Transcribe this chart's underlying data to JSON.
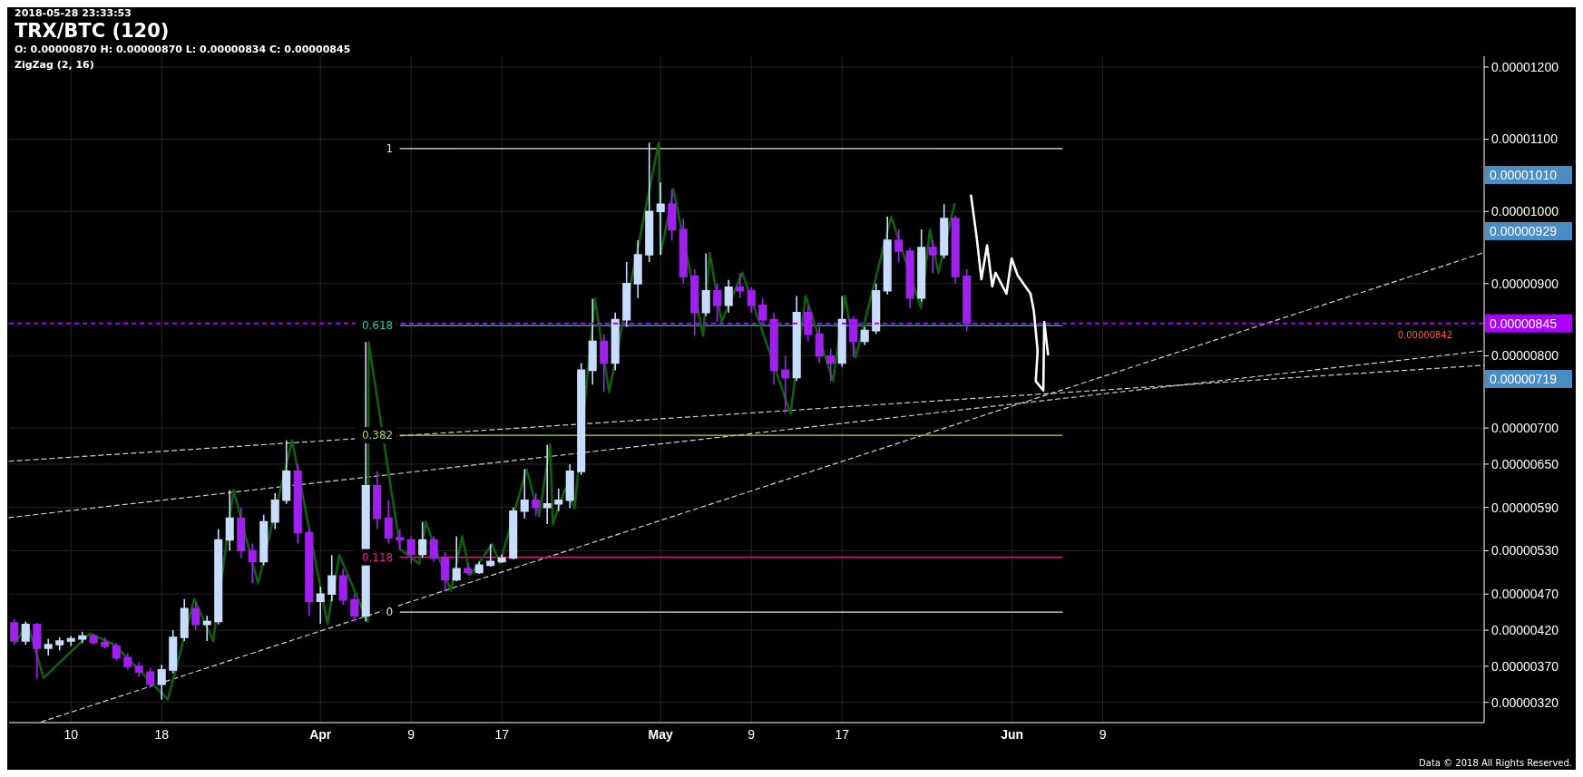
{
  "chart_data": {
    "type": "candlestick",
    "title": "TRX/BTC (120)",
    "subtitle": "O: 0.00000870 H: 0.00000870 L: 0.00000834 C: 0.00000845",
    "annotations": [
      "2018-05-28 23:33:53",
      "ZigZag (2, 16)",
      "Data © 2018 All Rights Reserved.",
      "0.00001010",
      "0.00000929",
      "0.00000719",
      {
        "text": "0.00000842",
        "x": "2018-07-05T00:00",
        "y": 8.42e-06
      }
    ],
    "xlim": [
      "2018-03-04T13:00",
      "2018-07-12T15:00"
    ],
    "xticks": [
      {
        "value": "2018-03-10",
        "label": "10"
      },
      {
        "value": "2018-03-18",
        "label": "18"
      },
      {
        "value": "2018-04-01",
        "label": "Apr"
      },
      {
        "value": "2018-04-09",
        "label": "9"
      },
      {
        "value": "2018-04-17",
        "label": "17"
      },
      {
        "value": "2018-05-01",
        "label": "May"
      },
      {
        "value": "2018-05-09",
        "label": "9"
      },
      {
        "value": "2018-05-17",
        "label": "17"
      },
      {
        "value": "2018-06-01",
        "label": "Jun"
      },
      {
        "value": "2018-06-09",
        "label": "9"
      }
    ],
    "ylim": [
      2.92e-06,
      1.215e-05
    ],
    "yticks": [
      {
        "value": 1.2e-05,
        "label": "0.00001200"
      },
      {
        "value": 1.1e-05,
        "label": "0.00001100"
      },
      {
        "value": 1e-05,
        "label": "0.00001000"
      },
      {
        "value": 9e-06,
        "label": "0.00000900"
      },
      {
        "value": 8e-06,
        "label": "0.00000800"
      },
      {
        "value": 7e-06,
        "label": "0.00000700"
      },
      {
        "value": 6.5e-06,
        "label": "0.00000650"
      },
      {
        "value": 5.9e-06,
        "label": "0.00000590"
      },
      {
        "value": 5.3e-06,
        "label": "0.00000530"
      },
      {
        "value": 4.7e-06,
        "label": "0.00000470"
      },
      {
        "value": 4.2e-06,
        "label": "0.00000420"
      },
      {
        "value": 3.7e-06,
        "label": "0.00000370"
      },
      {
        "value": 3.2e-06,
        "label": "0.00000320"
      }
    ],
    "grid": true,
    "ref_lines": [
      {
        "axis": "y",
        "value": 8.45e-06,
        "label": "0.00000845",
        "color": "#aa00ff",
        "line_style": "dashed"
      }
    ],
    "series": [
      {
        "type": "line",
        "line_style": "dashed",
        "color": "#d0d0d0",
        "x": [
          "2018-03-04T13:00",
          "2018-07-12T15:00"
        ],
        "values": [
          6.54e-06,
          7.87e-06
        ]
      },
      {
        "type": "line",
        "line_style": "dashed",
        "color": "#d0d0d0",
        "x": [
          "2018-03-04T13:00",
          "2018-07-12T15:00"
        ],
        "values": [
          5.76e-06,
          8.07e-06
        ]
      },
      {
        "type": "line",
        "line_style": "dashed",
        "color": "#d0d0d0",
        "x": [
          "2018-03-07T09:00",
          "2018-07-12T15:00"
        ],
        "values": [
          2.93e-06,
          9.43e-06
        ]
      },
      {
        "type": "line",
        "name": "1",
        "color": "#e6e6e6",
        "x": [
          "2018-04-08T01:00",
          "2018-06-05T10:00"
        ],
        "values": [
          1.087e-05,
          1.087e-05
        ]
      },
      {
        "type": "line",
        "name": "0.618",
        "color": "#26c6a0",
        "x": [
          "2018-04-08T01:00",
          "2018-06-05T10:00"
        ],
        "values": [
          8.42e-06,
          8.42e-06
        ]
      },
      {
        "type": "line",
        "name": "0.382",
        "color": "#b8d43c",
        "x": [
          "2018-04-08T01:00",
          "2018-06-05T10:00"
        ],
        "values": [
          6.9e-06,
          6.9e-06
        ]
      },
      {
        "type": "line",
        "name": "0.118",
        "color": "#e0208c",
        "x": [
          "2018-04-08T01:00",
          "2018-06-05T10:00"
        ],
        "values": [
          5.21e-06,
          5.21e-06
        ]
      },
      {
        "type": "line",
        "name": "0",
        "color": "#e6e6e6",
        "x": [
          "2018-04-08T01:00",
          "2018-06-05T10:00"
        ],
        "values": [
          4.45e-06,
          4.45e-06
        ]
      },
      {
        "type": "line",
        "color": "#0f5f0f",
        "x": [
          "2018-03-05T03:00",
          "2018-03-06T04:00",
          "2018-03-07T14:00",
          "2018-03-11T16:00",
          "2018-03-13T20:00",
          "2018-03-18T13:00",
          "2018-03-20T21:00",
          "2018-03-22T13:00",
          "2018-03-24T08:00",
          "2018-03-26T12:00",
          "2018-03-29T12:00",
          "2018-04-01T15:00",
          "2018-04-02T16:00",
          "2018-04-05T04:00",
          "2018-04-05T06:00",
          "2018-04-08T01:00",
          "2018-04-09T17:00",
          "2018-04-10T07:00",
          "2018-04-12T12:00",
          "2018-04-13T12:00",
          "2018-04-14T05:00",
          "2018-04-16T03:00",
          "2018-04-16T20:00",
          "2018-04-19T04:00",
          "2018-04-20T07:00",
          "2018-04-21T06:00",
          "2018-04-21T12:00",
          "2018-04-22T14:00",
          "2018-04-23T10:00",
          "2018-04-25T05:00",
          "2018-04-26T11:00",
          "2018-04-30T20:00",
          "2018-05-01T00:00",
          "2018-05-02T03:00",
          "2018-05-04T18:00",
          "2018-05-05T08:00",
          "2018-05-06T09:00",
          "2018-05-08T05:00",
          "2018-05-12T11:00",
          "2018-05-13T19:00",
          "2018-05-16T05:00",
          "2018-05-17T06:00",
          "2018-05-18T05:00",
          "2018-05-21T08:00",
          "2018-05-23T23:00",
          "2018-05-24T18:00",
          "2018-05-25T12:00",
          "2018-05-26T22:00"
        ],
        "values": [
          4.03e-06,
          4.29e-06,
          3.54e-06,
          4.15e-06,
          4e-06,
          3.24e-06,
          4.63e-06,
          4.05e-06,
          6.14e-06,
          4.85e-06,
          6.83e-06,
          4.29e-06,
          5.24e-06,
          4.32e-06,
          8.19e-06,
          5.32e-06,
          5.12e-06,
          5.7e-06,
          4.75e-06,
          5.5e-06,
          4.96e-06,
          5.39e-06,
          5.13e-06,
          6.43e-06,
          5.78e-06,
          6.77e-06,
          5.67e-06,
          6.16e-06,
          5.89e-06,
          8.79e-06,
          7.5e-06,
          1.095e-05,
          9.4e-06,
          1.031e-05,
          8.28e-06,
          9.42e-06,
          8.47e-06,
          9.15e-06,
          7.2e-06,
          8.83e-06,
          7.65e-06,
          8.83e-06,
          7.98e-06,
          9.93e-06,
          8.66e-06,
          9.75e-06,
          9.15e-06,
          1.01e-05
        ]
      },
      {
        "type": "line",
        "color": "#ffffff",
        "x": [
          "2018-05-28T09:00",
          "2018-05-28T21:00",
          "2018-05-29T07:00",
          "2018-05-29T19:00",
          "2018-05-30T06:00",
          "2018-05-30T13:00",
          "2018-05-31T12:00",
          "2018-05-31T23:00",
          "2018-06-01T12:00",
          "2018-06-02T15:00",
          "2018-06-02T22:00",
          "2018-06-03T06:00",
          "2018-06-03T02:00",
          "2018-06-03T18:00",
          "2018-06-03T20:00",
          "2018-06-04T04:00"
        ],
        "values": [
          1.022e-05,
          9.64e-06,
          9.06e-06,
          9.53e-06,
          8.96e-06,
          9.15e-06,
          8.86e-06,
          9.35e-06,
          9.11e-06,
          8.86e-06,
          8.62e-06,
          8.07e-06,
          7.65e-06,
          7.52e-06,
          8.47e-06,
          8.02e-06
        ]
      },
      {
        "type": "candlestick",
        "color": "#c8dcff",
        "x": [
          "2018-03-06",
          "2018-03-08",
          "2018-03-09",
          "2018-03-10",
          "2018-03-11",
          "2018-03-18",
          "2018-03-19",
          "2018-03-20",
          "2018-03-22",
          "2018-03-23",
          "2018-03-24",
          "2018-03-27",
          "2018-03-28",
          "2018-03-29",
          "2018-04-01",
          "2018-04-02",
          "2018-04-05",
          "2018-04-10",
          "2018-04-13",
          "2018-04-15",
          "2018-04-16",
          "2018-04-17",
          "2018-04-18",
          "2018-04-19",
          "2018-04-21",
          "2018-04-22",
          "2018-04-23",
          "2018-04-24",
          "2018-04-25",
          "2018-04-27",
          "2018-04-28",
          "2018-04-29",
          "2018-04-30",
          "2018-05-01",
          "2018-05-05",
          "2018-05-07",
          "2018-05-13",
          "2018-05-17",
          "2018-05-19",
          "2018-05-20",
          "2018-05-21",
          "2018-05-24",
          "2018-05-26"
        ],
        "ohlc": [
          [
            4.05e-06,
            4.32e-06,
            4e-06,
            4.28e-06
          ],
          [
            3.95e-06,
            4.08e-06,
            3.85e-06,
            4e-06
          ],
          [
            4e-06,
            4.1e-06,
            3.92e-06,
            4.05e-06
          ],
          [
            4.05e-06,
            4.12e-06,
            3.98e-06,
            4.08e-06
          ],
          [
            4.08e-06,
            4.18e-06,
            4.02e-06,
            4.12e-06
          ],
          [
            3.45e-06,
            3.72e-06,
            3.24e-06,
            3.65e-06
          ],
          [
            3.65e-06,
            4.2e-06,
            3.6e-06,
            4.1e-06
          ],
          [
            4.1e-06,
            4.63e-06,
            4.05e-06,
            4.5e-06
          ],
          [
            4.28e-06,
            4.4e-06,
            4.05e-06,
            4.32e-06
          ],
          [
            4.32e-06,
            5.6e-06,
            4.28e-06,
            5.45e-06
          ],
          [
            5.45e-06,
            6.14e-06,
            5.3e-06,
            5.75e-06
          ],
          [
            5.15e-06,
            5.8e-06,
            5.1e-06,
            5.7e-06
          ],
          [
            5.7e-06,
            6.1e-06,
            5.6e-06,
            6e-06
          ],
          [
            6e-06,
            6.83e-06,
            5.95e-06,
            6.4e-06
          ],
          [
            4.6e-06,
            4.8e-06,
            4.29e-06,
            4.7e-06
          ],
          [
            4.7e-06,
            5.24e-06,
            4.6e-06,
            4.95e-06
          ],
          [
            4.4e-06,
            8.19e-06,
            4.32e-06,
            6.2e-06
          ],
          [
            5.25e-06,
            5.7e-06,
            5.2e-06,
            5.45e-06
          ],
          [
            4.9e-06,
            5.5e-06,
            4.88e-06,
            5.05e-06
          ],
          [
            5e-06,
            5.15e-06,
            4.98e-06,
            5.1e-06
          ],
          [
            5.1e-06,
            5.39e-06,
            5.08e-06,
            5.15e-06
          ],
          [
            5.15e-06,
            5.25e-06,
            5.13e-06,
            5.2e-06
          ],
          [
            5.2e-06,
            5.9e-06,
            5.18e-06,
            5.85e-06
          ],
          [
            5.85e-06,
            6.43e-06,
            5.75e-06,
            6e-06
          ],
          [
            5.9e-06,
            6.77e-06,
            5.67e-06,
            5.95e-06
          ],
          [
            5.95e-06,
            6.16e-06,
            5.85e-06,
            6e-06
          ],
          [
            6e-06,
            6.5e-06,
            5.89e-06,
            6.4e-06
          ],
          [
            6.4e-06,
            7.9e-06,
            6.35e-06,
            7.8e-06
          ],
          [
            7.8e-06,
            8.79e-06,
            7.6e-06,
            8.2e-06
          ],
          [
            7.9e-06,
            8.6e-06,
            7.8e-06,
            8.5e-06
          ],
          [
            8.5e-06,
            9.3e-06,
            8.4e-06,
            9e-06
          ],
          [
            9e-06,
            9.6e-06,
            8.8e-06,
            9.4e-06
          ],
          [
            9.4e-06,
            1.095e-05,
            9.3e-06,
            1e-05
          ],
          [
            1e-05,
            1.04e-05,
            9.4e-06,
            1.01e-05
          ],
          [
            8.6e-06,
            9.42e-06,
            8.55e-06,
            8.9e-06
          ],
          [
            8.7e-06,
            9.05e-06,
            8.6e-06,
            8.95e-06
          ],
          [
            7.7e-06,
            8.83e-06,
            7.65e-06,
            8.6e-06
          ],
          [
            7.9e-06,
            8.83e-06,
            7.85e-06,
            8.5e-06
          ],
          [
            8.2e-06,
            8.4e-06,
            8.15e-06,
            8.35e-06
          ],
          [
            8.35e-06,
            9e-06,
            8.3e-06,
            8.9e-06
          ],
          [
            8.9e-06,
            9.93e-06,
            8.85e-06,
            9.6e-06
          ],
          [
            8.8e-06,
            9.75e-06,
            8.75e-06,
            9.5e-06
          ],
          [
            9.4e-06,
            1.01e-05,
            9.35e-06,
            9.9e-06
          ]
        ]
      },
      {
        "type": "candlestick",
        "color": "#a020f0",
        "x": [
          "2018-03-05",
          "2018-03-07",
          "2018-03-12",
          "2018-03-13",
          "2018-03-14",
          "2018-03-15",
          "2018-03-16",
          "2018-03-17",
          "2018-03-21",
          "2018-03-25",
          "2018-03-26",
          "2018-03-30",
          "2018-03-31",
          "2018-04-03",
          "2018-04-04",
          "2018-04-06",
          "2018-04-07",
          "2018-04-08",
          "2018-04-09",
          "2018-04-11",
          "2018-04-12",
          "2018-04-14",
          "2018-04-20",
          "2018-04-26",
          "2018-05-02",
          "2018-05-03",
          "2018-05-04",
          "2018-05-06",
          "2018-05-08",
          "2018-05-09",
          "2018-05-10",
          "2018-05-11",
          "2018-05-12",
          "2018-05-14",
          "2018-05-15",
          "2018-05-16",
          "2018-05-18",
          "2018-05-22",
          "2018-05-23",
          "2018-05-25",
          "2018-05-27",
          "2018-05-28"
        ],
        "ohlc": [
          [
            4.3e-06,
            4.35e-06,
            4e-06,
            4.05e-06
          ],
          [
            4.28e-06,
            4.3e-06,
            3.52e-06,
            3.95e-06
          ],
          [
            4.12e-06,
            4.15e-06,
            4e-06,
            4.03e-06
          ],
          [
            4.03e-06,
            4.1e-06,
            3.95e-06,
            3.98e-06
          ],
          [
            3.98e-06,
            4.02e-06,
            3.78e-06,
            3.82e-06
          ],
          [
            3.82e-06,
            3.88e-06,
            3.65e-06,
            3.7e-06
          ],
          [
            3.7e-06,
            3.76e-06,
            3.55e-06,
            3.62e-06
          ],
          [
            3.62e-06,
            3.68e-06,
            3.4e-06,
            3.45e-06
          ],
          [
            4.5e-06,
            4.58e-06,
            4.2e-06,
            4.28e-06
          ],
          [
            5.75e-06,
            5.9e-06,
            5.2e-06,
            5.3e-06
          ],
          [
            5.3e-06,
            5.4e-06,
            4.85e-06,
            5.15e-06
          ],
          [
            6.4e-06,
            6.5e-06,
            5.4e-06,
            5.55e-06
          ],
          [
            5.55e-06,
            5.6e-06,
            4.4e-06,
            4.6e-06
          ],
          [
            4.95e-06,
            5.05e-06,
            4.55e-06,
            4.62e-06
          ],
          [
            4.62e-06,
            4.7e-06,
            4.32e-06,
            4.4e-06
          ],
          [
            6.2e-06,
            6.4e-06,
            5.6e-06,
            5.75e-06
          ],
          [
            5.75e-06,
            6e-06,
            5.4e-06,
            5.48e-06
          ],
          [
            5.48e-06,
            5.6e-06,
            5.32e-06,
            5.45e-06
          ],
          [
            5.45e-06,
            5.5e-06,
            5.12e-06,
            5.25e-06
          ],
          [
            5.45e-06,
            5.5e-06,
            5.15e-06,
            5.2e-06
          ],
          [
            5.2e-06,
            5.28e-06,
            4.75e-06,
            4.9e-06
          ],
          [
            5.05e-06,
            5.12e-06,
            4.96e-06,
            5e-06
          ],
          [
            6e-06,
            6.1e-06,
            5.78e-06,
            5.9e-06
          ],
          [
            8.2e-06,
            8.3e-06,
            7.5e-06,
            7.9e-06
          ],
          [
            1.01e-05,
            1.031e-05,
            9.6e-06,
            9.75e-06
          ],
          [
            9.75e-06,
            9.9e-06,
            9e-06,
            9.1e-06
          ],
          [
            9.1e-06,
            9.2e-06,
            8.28e-06,
            8.6e-06
          ],
          [
            8.9e-06,
            9e-06,
            8.47e-06,
            8.7e-06
          ],
          [
            8.95e-06,
            9.15e-06,
            8.8e-06,
            8.9e-06
          ],
          [
            8.9e-06,
            8.95e-06,
            8.6e-06,
            8.7e-06
          ],
          [
            8.7e-06,
            8.8e-06,
            8.45e-06,
            8.5e-06
          ],
          [
            8.5e-06,
            8.6e-06,
            7.6e-06,
            7.8e-06
          ],
          [
            7.8e-06,
            8e-06,
            7.2e-06,
            7.7e-06
          ],
          [
            8.6e-06,
            8.7e-06,
            8.2e-06,
            8.3e-06
          ],
          [
            8.3e-06,
            8.4e-06,
            7.9e-06,
            8e-06
          ],
          [
            8e-06,
            8.1e-06,
            7.65e-06,
            7.9e-06
          ],
          [
            8.5e-06,
            8.55e-06,
            7.98e-06,
            8.2e-06
          ],
          [
            9.6e-06,
            9.75e-06,
            9.3e-06,
            9.45e-06
          ],
          [
            9.45e-06,
            9.5e-06,
            8.66e-06,
            8.8e-06
          ],
          [
            9.5e-06,
            9.6e-06,
            9.15e-06,
            9.4e-06
          ],
          [
            9.9e-06,
            9.95e-06,
            9e-06,
            9.1e-06
          ],
          [
            9.1e-06,
            9.2e-06,
            8.34e-06,
            8.45e-06
          ]
        ]
      }
    ]
  }
}
